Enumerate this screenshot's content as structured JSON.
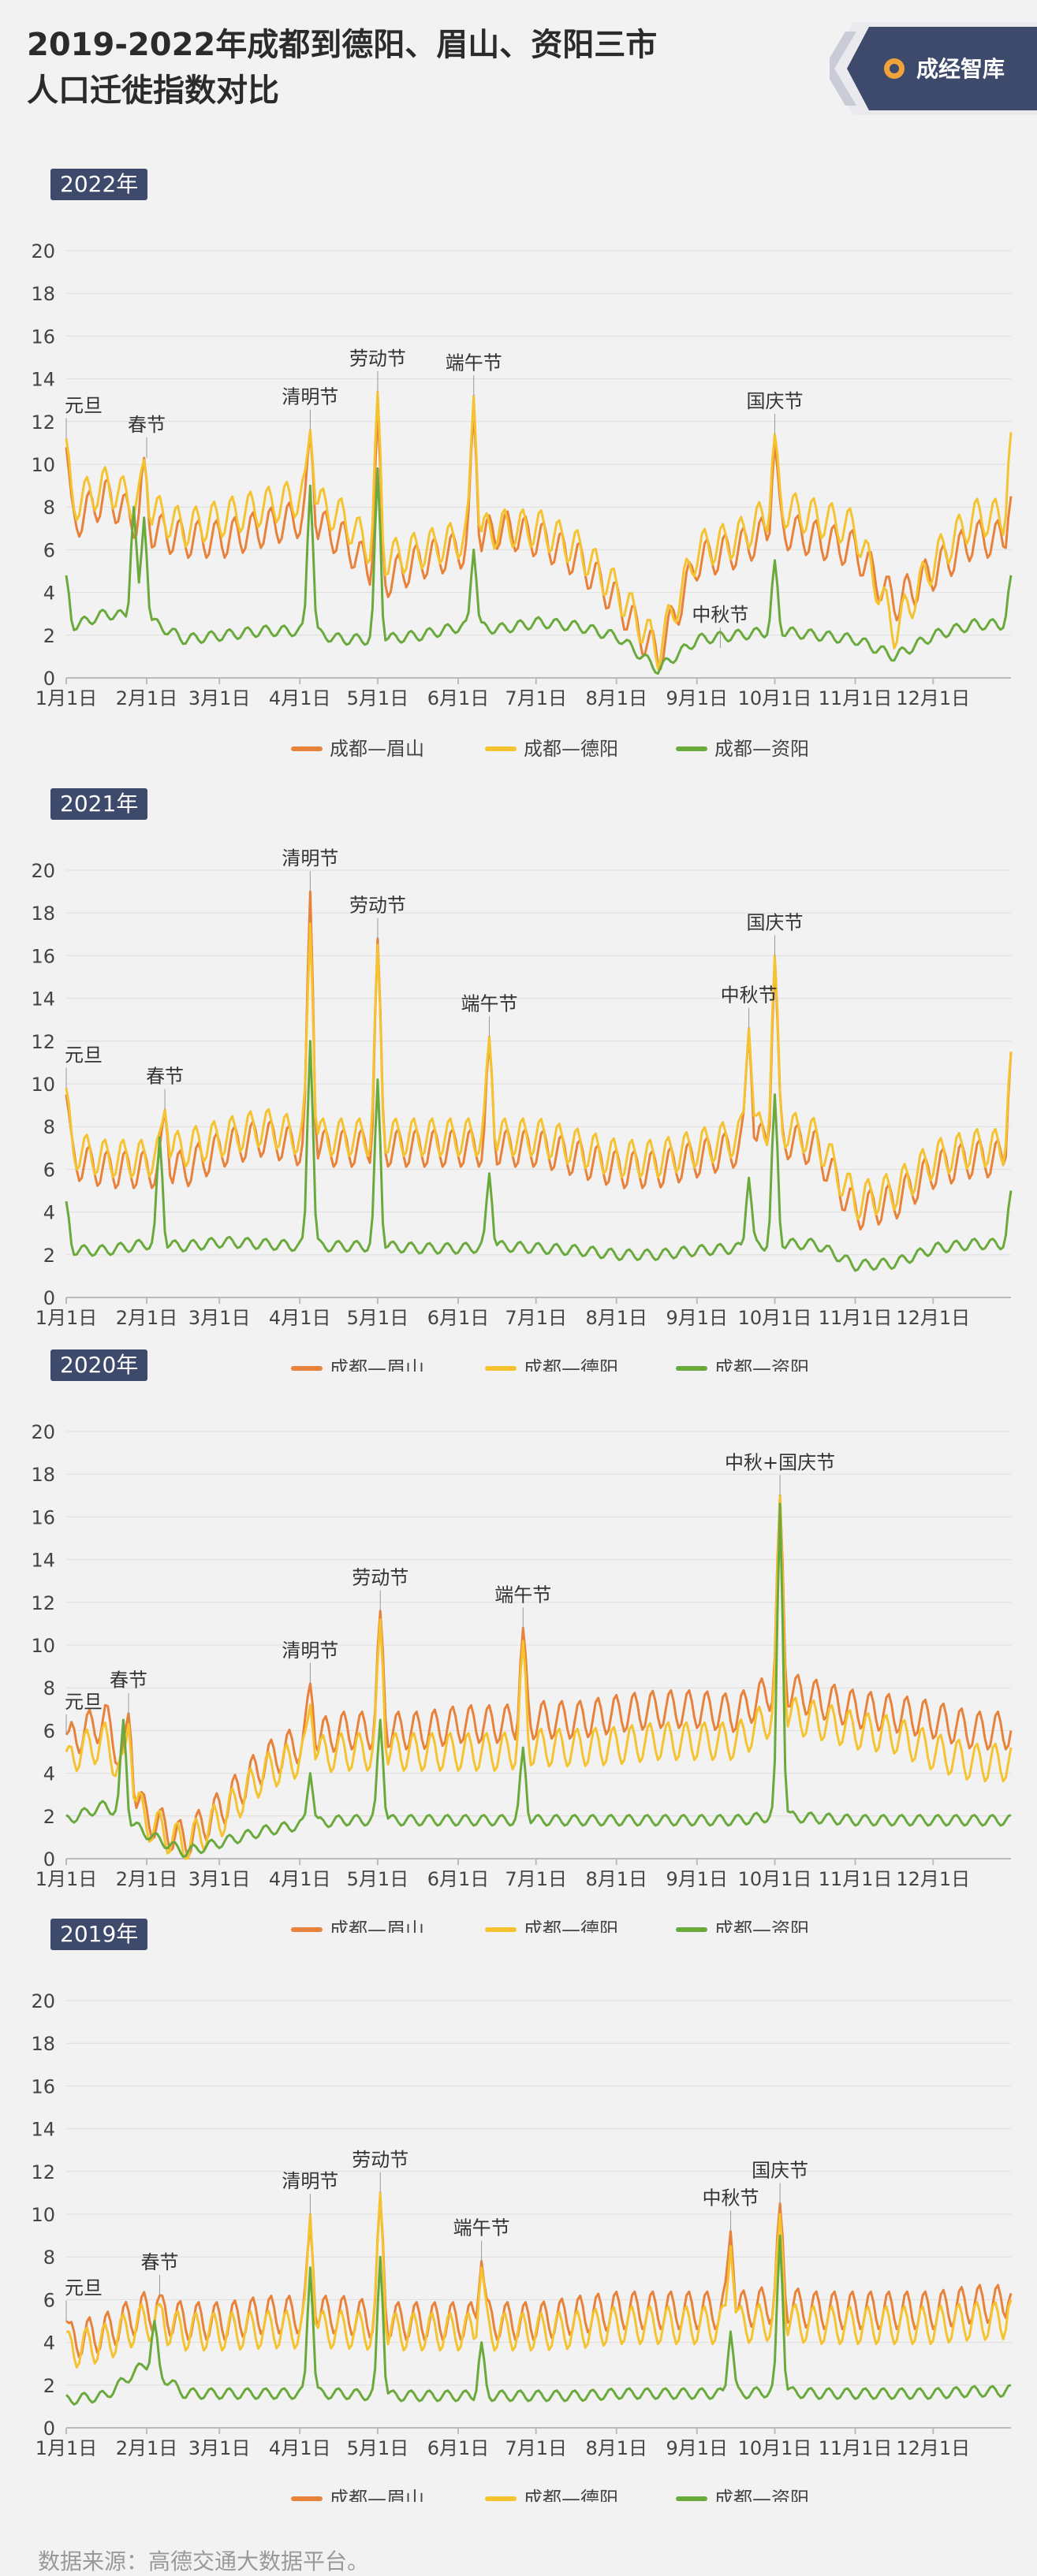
{
  "title_line1": "2019-2022年成都到德阳、眉山、资阳三市",
  "title_line2": "人口迁徙指数对比",
  "logo_text": "成经智库",
  "footer": "数据来源：高德交通大数据平台。",
  "colors": {
    "meishan": "#e8823a",
    "deyang": "#f5c330",
    "ziyang": "#6aaa3c",
    "badge": "#3e4a6b"
  },
  "chart_data": [
    {
      "type": "line",
      "year_label": "2022年",
      "xticks": [
        "1月1日",
        "2月1日",
        "3月1日",
        "4月1日",
        "5月1日",
        "6月1日",
        "7月1日",
        "8月1日",
        "9月1日",
        "10月1日",
        "11月1日",
        "12月1日"
      ],
      "ylim": [
        0,
        20
      ],
      "yticks": [
        0,
        2,
        4,
        6,
        8,
        10,
        12,
        14,
        16,
        18,
        20
      ],
      "legend": [
        "成都—眉山",
        "成都—德阳",
        "成都—资阳"
      ],
      "series": [
        {
          "name": "成都—眉山",
          "base": [
            7,
            8.5,
            7,
            6.5,
            6.5,
            7,
            7.5,
            6.5,
            4.5,
            5.5,
            6,
            7,
            6.5,
            5.5,
            3.5,
            1,
            5.5,
            6,
            7,
            6.5,
            6,
            3.5,
            5,
            6.5
          ],
          "peaks": [
            [
              0,
              10.8
            ],
            [
              30,
              10.3
            ],
            [
              94,
              11.5
            ],
            [
              120,
              12.5
            ],
            [
              157,
              12.5
            ],
            [
              273,
              11
            ],
            [
              364,
              8.5
            ]
          ]
        },
        {
          "name": "成都—德阳",
          "base": [
            8,
            9,
            8,
            7,
            7.5,
            8,
            8.5,
            7.5,
            5.5,
            6,
            6.5,
            7,
            7,
            6,
            4,
            1.3,
            6,
            6.5,
            8,
            7.5,
            7,
            2.2,
            5.5,
            7.5
          ],
          "peaks": [
            [
              0,
              11.2
            ],
            [
              30,
              10.2
            ],
            [
              94,
              11.6
            ],
            [
              120,
              13.4
            ],
            [
              157,
              13.2
            ],
            [
              273,
              11.4
            ],
            [
              364,
              11.5
            ]
          ]
        },
        {
          "name": "成都—资阳",
          "base": [
            2.3,
            3,
            2.8,
            1.8,
            2,
            2.2,
            2.2,
            1.8,
            1.8,
            2,
            2.4,
            2.3,
            2.6,
            2.4,
            1.9,
            0.4,
            1.8,
            2,
            2.2,
            2,
            1.8,
            1,
            2,
            2.5
          ],
          "peaks": [
            [
              0,
              4.8
            ],
            [
              26,
              8
            ],
            [
              30,
              7.5
            ],
            [
              94,
              9
            ],
            [
              120,
              9.8
            ],
            [
              157,
              6
            ],
            [
              273,
              5.5
            ],
            [
              364,
              4.8
            ]
          ]
        }
      ],
      "annotations": [
        {
          "label": "元旦",
          "day": 0,
          "value": 11.2
        },
        {
          "label": "春节",
          "day": 31,
          "value": 10.3
        },
        {
          "label": "清明节",
          "day": 94,
          "value": 11.6
        },
        {
          "label": "劳动节",
          "day": 120,
          "value": 13.4
        },
        {
          "label": "端午节",
          "day": 157,
          "value": 13.2
        },
        {
          "label": "中秋节",
          "day": 252,
          "value": 1.4
        },
        {
          "label": "国庆节",
          "day": 273,
          "value": 11.4
        }
      ]
    },
    {
      "type": "line",
      "year_label": "2021年",
      "xticks": [
        "1月1日",
        "2月1日",
        "3月1日",
        "4月1日",
        "5月1日",
        "6月1日",
        "7月1日",
        "8月1日",
        "9月1日",
        "10月1日",
        "11月1日",
        "12月1日"
      ],
      "ylim": [
        0,
        20
      ],
      "yticks": [
        0,
        2,
        4,
        6,
        8,
        10,
        12,
        14,
        16,
        18,
        20
      ],
      "legend": [
        "成都—眉山",
        "成都—德阳",
        "成都—资阳"
      ],
      "series": [
        {
          "name": "成都—眉山",
          "base": [
            6.5,
            6,
            6,
            6,
            7,
            7.5,
            7,
            7,
            7,
            7,
            7,
            7,
            7,
            6.5,
            6,
            6,
            6.5,
            7,
            7.5,
            7,
            4,
            4.5,
            6,
            6.5
          ],
          "peaks": [
            [
              0,
              9.5
            ],
            [
              38,
              8.7
            ],
            [
              94,
              19
            ],
            [
              120,
              16.8
            ],
            [
              163,
              12
            ],
            [
              263,
              12.5
            ],
            [
              273,
              15.8
            ],
            [
              364,
              11.5
            ]
          ]
        },
        {
          "name": "成都—德阳",
          "base": [
            7,
            6.5,
            6.5,
            7,
            7.5,
            8,
            7.5,
            7.5,
            7.5,
            7.5,
            7.5,
            7.5,
            7.5,
            7,
            6.5,
            6.5,
            7,
            7.5,
            8,
            7.5,
            4.5,
            5,
            6.5,
            7
          ],
          "peaks": [
            [
              0,
              9.8
            ],
            [
              38,
              8.8
            ],
            [
              94,
              17.5
            ],
            [
              120,
              16.5
            ],
            [
              163,
              12.2
            ],
            [
              263,
              12.6
            ],
            [
              273,
              16
            ],
            [
              364,
              11.5
            ]
          ]
        },
        {
          "name": "成都—资阳",
          "base": [
            2.2,
            2.2,
            2.5,
            2.4,
            2.6,
            2.5,
            2.4,
            2.4,
            2.4,
            2.3,
            2.3,
            2.4,
            2.3,
            2.2,
            2,
            2,
            2.2,
            2.3,
            2.5,
            2.5,
            1.5,
            1.6,
            2.3,
            2.5
          ],
          "peaks": [
            [
              0,
              4.5
            ],
            [
              36,
              7.5
            ],
            [
              94,
              12
            ],
            [
              120,
              10.2
            ],
            [
              163,
              5.8
            ],
            [
              263,
              5.6
            ],
            [
              273,
              9.5
            ],
            [
              364,
              5
            ]
          ]
        }
      ],
      "annotations": [
        {
          "label": "元旦",
          "day": 0,
          "value": 9.8
        },
        {
          "label": "春节",
          "day": 38,
          "value": 8.8
        },
        {
          "label": "清明节",
          "day": 94,
          "value": 19
        },
        {
          "label": "劳动节",
          "day": 120,
          "value": 16.8
        },
        {
          "label": "端午节",
          "day": 163,
          "value": 12.2
        },
        {
          "label": "中秋节",
          "day": 263,
          "value": 12.6
        },
        {
          "label": "国庆节",
          "day": 273,
          "value": 16
        }
      ]
    },
    {
      "type": "line",
      "year_label": "2020年",
      "xticks": [
        "1月1日",
        "2月1日",
        "3月1日",
        "4月1日",
        "5月1日",
        "6月1日",
        "7月1日",
        "8月1日",
        "9月1日",
        "10月1日",
        "11月1日",
        "12月1日"
      ],
      "ylim": [
        0,
        20
      ],
      "yticks": [
        0,
        2,
        4,
        6,
        8,
        10,
        12,
        14,
        16,
        18,
        20
      ],
      "legend": [
        "成都—眉山",
        "成都—德阳",
        "成都—资阳"
      ],
      "series": [
        {
          "name": "成都—眉山",
          "base": [
            5.5,
            6.5,
            2,
            0.8,
            2.5,
            4.5,
            5.5,
            6,
            6,
            6,
            6.3,
            6.3,
            6.5,
            6.5,
            6.8,
            7,
            7,
            6.8,
            8,
            7.5,
            7,
            6.8,
            6.5,
            6
          ],
          "peaks": [
            [
              0,
              5.8
            ],
            [
              24,
              6.8
            ],
            [
              94,
              8.2
            ],
            [
              121,
              11.6
            ],
            [
              176,
              10.8
            ],
            [
              275,
              17
            ]
          ]
        },
        {
          "name": "成都—德阳",
          "base": [
            4.8,
            5.5,
            1.8,
            0.6,
            2,
            4,
            4.8,
            5,
            5,
            5,
            5,
            5,
            5.2,
            5.2,
            5.3,
            5.5,
            5.5,
            5.5,
            6.8,
            6.5,
            6,
            5.8,
            5,
            4.5
          ],
          "peaks": [
            [
              0,
              5
            ],
            [
              24,
              6.3
            ],
            [
              94,
              7.2
            ],
            [
              121,
              11.2
            ],
            [
              176,
              10.2
            ],
            [
              275,
              17
            ]
          ]
        },
        {
          "name": "成都—资阳",
          "base": [
            1.8,
            2.5,
            1.2,
            0.3,
            0.8,
            1.3,
            1.6,
            1.8,
            1.8,
            1.8,
            1.8,
            1.8,
            1.8,
            1.8,
            1.8,
            1.8,
            1.8,
            1.8,
            2,
            1.9,
            1.8,
            1.8,
            1.8,
            1.8
          ],
          "peaks": [
            [
              22,
              6.5
            ],
            [
              94,
              4
            ],
            [
              121,
              6.5
            ],
            [
              176,
              5.2
            ],
            [
              275,
              16.6
            ]
          ]
        }
      ],
      "annotations": [
        {
          "label": "元旦",
          "day": 0,
          "value": 5.8
        },
        {
          "label": "春节",
          "day": 24,
          "value": 6.8
        },
        {
          "label": "清明节",
          "day": 94,
          "value": 8.2
        },
        {
          "label": "劳动节",
          "day": 121,
          "value": 11.6
        },
        {
          "label": "端午节",
          "day": 176,
          "value": 10.8
        },
        {
          "label": "中秋+国庆节",
          "day": 275,
          "value": 17
        }
      ]
    },
    {
      "type": "line",
      "year_label": "2019年",
      "xticks": [
        "1月1日",
        "2月1日",
        "3月1日",
        "4月1日",
        "5月1日",
        "6月1日",
        "7月1日",
        "8月1日",
        "9月1日",
        "10月1日",
        "11月1日",
        "12月1日"
      ],
      "ylim": [
        0,
        20
      ],
      "yticks": [
        0,
        2,
        4,
        6,
        8,
        10,
        12,
        14,
        16,
        18,
        20
      ],
      "legend": [
        "成都—眉山",
        "成都—德阳",
        "成都—资阳"
      ],
      "series": [
        {
          "name": "成都—眉山",
          "base": [
            4,
            4.5,
            5.5,
            5,
            5,
            5.3,
            5.3,
            5.3,
            5,
            5,
            5,
            5,
            5,
            5.3,
            5.5,
            5.5,
            5.5,
            5.5,
            5.8,
            5.5,
            5.5,
            5.5,
            5.5,
            5.8
          ],
          "peaks": [
            [
              0,
              5
            ],
            [
              36,
              6.2
            ],
            [
              94,
              9.5
            ],
            [
              121,
              10.8
            ],
            [
              160,
              7.8
            ],
            [
              256,
              9.2
            ],
            [
              275,
              10.5
            ],
            [
              364,
              6.3
            ]
          ]
        },
        {
          "name": "成都—德阳",
          "base": [
            3.6,
            4,
            5,
            4.5,
            4.5,
            4.6,
            4.6,
            4.6,
            4.5,
            4.5,
            4.5,
            4.5,
            4.5,
            4.6,
            4.8,
            4.8,
            4.8,
            4.8,
            5,
            4.8,
            4.8,
            4.8,
            4.8,
            5
          ],
          "peaks": [
            [
              0,
              4.5
            ],
            [
              36,
              5.8
            ],
            [
              94,
              10
            ],
            [
              121,
              11
            ],
            [
              160,
              7.5
            ],
            [
              256,
              8.5
            ],
            [
              275,
              10
            ],
            [
              364,
              6
            ]
          ]
        },
        {
          "name": "成都—资阳",
          "base": [
            1.3,
            1.5,
            3,
            1.6,
            1.6,
            1.6,
            1.6,
            1.6,
            1.5,
            1.5,
            1.5,
            1.5,
            1.5,
            1.5,
            1.6,
            1.6,
            1.6,
            1.6,
            1.7,
            1.6,
            1.6,
            1.6,
            1.6,
            1.7
          ],
          "peaks": [
            [
              34,
              5
            ],
            [
              94,
              7.5
            ],
            [
              121,
              8
            ],
            [
              160,
              4
            ],
            [
              256,
              4.5
            ],
            [
              275,
              9
            ],
            [
              364,
              2
            ]
          ]
        }
      ],
      "annotations": [
        {
          "label": "元旦",
          "day": 0,
          "value": 5
        },
        {
          "label": "春节",
          "day": 36,
          "value": 6.2
        },
        {
          "label": "清明节",
          "day": 94,
          "value": 10
        },
        {
          "label": "劳动节",
          "day": 121,
          "value": 11
        },
        {
          "label": "端午节",
          "day": 160,
          "value": 7.8
        },
        {
          "label": "中秋节",
          "day": 256,
          "value": 9.2
        },
        {
          "label": "国庆节",
          "day": 275,
          "value": 10.5
        }
      ]
    }
  ]
}
